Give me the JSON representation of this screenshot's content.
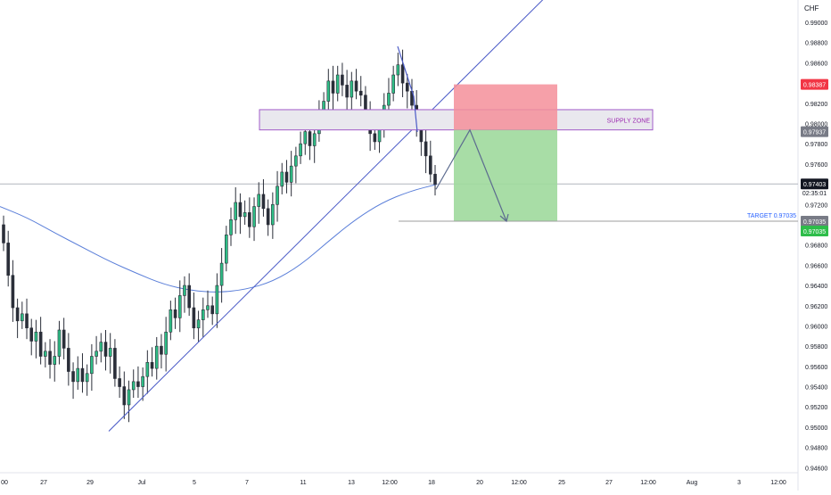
{
  "currency": "CHF",
  "colors": {
    "up": "#26a69a",
    "down": "#2a2e39",
    "candle_up_fill": "#2ebd85",
    "ma_line": "#5b7fd9",
    "trendline": "#4a5ac7",
    "arrow": "#5c6b8f",
    "zone_border": "#a15cc9",
    "zone_fill": "#e9e8ee",
    "zone_text": "#9c27b0",
    "stop_fill": "#f48f9a",
    "target_fill": "#9ed99c",
    "target_line": "#9e9e9e",
    "target_text": "#2962ff",
    "badge_red": "#f23645",
    "badge_green": "#2ebd4a",
    "badge_gray": "#787b86",
    "badge_dark": "#131722"
  },
  "y_axis": {
    "ticks": [
      "0.99000",
      "0.98800",
      "0.98600",
      "0.98200",
      "0.98000",
      "0.97800",
      "0.97600",
      "0.97200",
      "0.96800",
      "0.96600",
      "0.96400",
      "0.96200",
      "0.96000",
      "0.95800",
      "0.95600",
      "0.95400",
      "0.95200",
      "0.95000",
      "0.94800",
      "0.94600"
    ]
  },
  "x_axis": {
    "ticks": [
      "00",
      "27",
      "29",
      "Jul",
      "5",
      "7",
      "11",
      "13",
      "12:00",
      "18",
      "20",
      "12:00",
      "25",
      "27",
      "12:00",
      "Aug",
      "3",
      "12:00"
    ]
  },
  "annotations": {
    "supply_zone": "SUPPLY ZONE",
    "target": "TARGET 0.97035"
  },
  "price_badges": {
    "stop": "0.98387",
    "zone": "0.97937",
    "current": "0.97403",
    "countdown": "02:35:01",
    "target_a": "0.97035",
    "target_b": "0.97035"
  },
  "chart_data": {
    "type": "candlestick",
    "title": "",
    "currency": "CHF",
    "y_range": [
      0.9455,
      0.9915
    ],
    "current_price": 0.97403,
    "supply_zone": [
      0.97937,
      0.98137
    ],
    "short_position": {
      "entry": 0.97937,
      "stop": 0.98387,
      "target": 0.97035
    },
    "closes": [
      0.9682,
      0.965,
      0.9618,
      0.9605,
      0.9612,
      0.9598,
      0.9585,
      0.9594,
      0.957,
      0.9575,
      0.9562,
      0.957,
      0.9596,
      0.9578,
      0.9555,
      0.9545,
      0.9558,
      0.9545,
      0.9553,
      0.957,
      0.9575,
      0.9584,
      0.957,
      0.9578,
      0.9548,
      0.954,
      0.9522,
      0.9537,
      0.9545,
      0.954,
      0.955,
      0.9564,
      0.9558,
      0.958,
      0.9572,
      0.9594,
      0.9616,
      0.9608,
      0.963,
      0.964,
      0.9618,
      0.9598,
      0.9606,
      0.9616,
      0.962,
      0.9612,
      0.964,
      0.9662,
      0.969,
      0.9705,
      0.9722,
      0.9708,
      0.9712,
      0.9698,
      0.9718,
      0.973,
      0.9716,
      0.97,
      0.972,
      0.9738,
      0.9752,
      0.9742,
      0.9758,
      0.9768,
      0.978,
      0.9792,
      0.9778,
      0.979,
      0.9808,
      0.9822,
      0.9842,
      0.983,
      0.9848,
      0.9838,
      0.9826,
      0.9842,
      0.9832,
      0.9828,
      0.981,
      0.979,
      0.9782,
      0.98,
      0.9818,
      0.983,
      0.9848,
      0.9858,
      0.984,
      0.9832,
      0.9818,
      0.9798,
      0.9782,
      0.9768,
      0.975,
      0.974
    ],
    "moving_average": [
      0.9718,
      0.9707,
      0.9692,
      0.9678,
      0.9664,
      0.9652,
      0.9641,
      0.9635,
      0.9633,
      0.9636,
      0.9644,
      0.966,
      0.9683,
      0.9705,
      0.9722,
      0.9733,
      0.974
    ],
    "trendline": {
      "from": 0.9496,
      "to": 0.9926
    },
    "projection": [
      0.97403,
      0.97937,
      0.97035
    ]
  }
}
